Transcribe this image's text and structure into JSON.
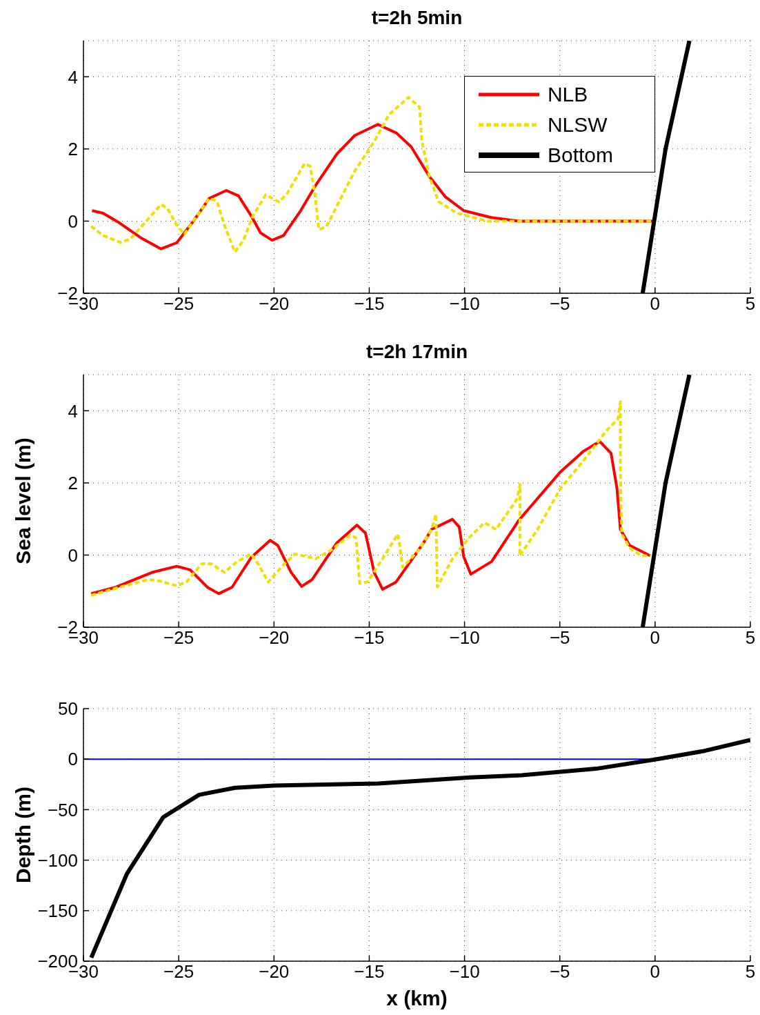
{
  "chart_data": [
    {
      "type": "line",
      "title": "t=2h 5min",
      "xlim": [
        -30,
        5
      ],
      "xticks": [
        -30,
        -25,
        -20,
        -15,
        -10,
        -5,
        0,
        5
      ],
      "ylim": [
        -2,
        5
      ],
      "yticks": [
        -2,
        0,
        2,
        4
      ],
      "grid": true,
      "legend": "top right",
      "series": [
        {
          "name": "NLB",
          "color": "#ff0000",
          "line_style": "solid",
          "x": [
            -29.55,
            -28.97,
            -28.2,
            -27.0,
            -25.93,
            -25.1,
            -24.3,
            -23.4,
            -22.5,
            -21.86,
            -21.2,
            -20.7,
            -20.1,
            -19.5,
            -18.6,
            -17.84,
            -16.7,
            -15.77,
            -14.55,
            -13.57,
            -12.8,
            -11.85,
            -11.0,
            -10.04,
            -8.6,
            -7.14,
            -0.13
          ],
          "values": [
            0.29,
            0.22,
            -0.02,
            -0.46,
            -0.77,
            -0.6,
            -0.05,
            0.63,
            0.85,
            0.7,
            0.15,
            -0.33,
            -0.53,
            -0.4,
            0.29,
            0.97,
            1.86,
            2.37,
            2.68,
            2.44,
            2.06,
            1.24,
            0.67,
            0.29,
            0.1,
            0,
            0
          ]
        },
        {
          "name": "NLSW",
          "color": "#f0e000",
          "line_style": "dashed",
          "x": [
            -29.6,
            -28.97,
            -28.06,
            -27.55,
            -26.9,
            -25.93,
            -25.6,
            -25.1,
            -24.7,
            -24.05,
            -23.4,
            -23.0,
            -22.6,
            -22.05,
            -21.6,
            -21.1,
            -20.43,
            -19.74,
            -19.3,
            -18.4,
            -18.1,
            -17.84,
            -17.65,
            -17.25,
            -16.7,
            -15.77,
            -14.75,
            -13.97,
            -12.94,
            -12.36,
            -12.25,
            -11.85,
            -11.36,
            -10.4,
            -8.8,
            -0.13
          ],
          "values": [
            -0.14,
            -0.4,
            -0.59,
            -0.5,
            -0.12,
            0.46,
            0.36,
            -0.12,
            -0.36,
            0.15,
            0.63,
            0.56,
            -0.12,
            -0.86,
            -0.53,
            0.15,
            0.73,
            0.53,
            0.77,
            1.59,
            1.52,
            0.7,
            -0.23,
            -0.16,
            0.42,
            1.38,
            2.2,
            2.95,
            3.43,
            3.16,
            2.25,
            1.24,
            0.54,
            0.22,
            0,
            0
          ]
        },
        {
          "name": "Bottom",
          "color": "#000000",
          "line_style": "solid",
          "x": [
            -0.65,
            0.55,
            1.8
          ],
          "values": [
            -2,
            2,
            5
          ]
        }
      ]
    },
    {
      "type": "line",
      "title": "t=2h 17min",
      "ylabel": "Sea level (m)",
      "xlim": [
        -30,
        5
      ],
      "xticks": [
        -30,
        -25,
        -20,
        -15,
        -10,
        -5,
        0,
        5
      ],
      "ylim": [
        -2,
        5
      ],
      "yticks": [
        -2,
        0,
        2,
        4
      ],
      "grid": true,
      "series": [
        {
          "color": "#ff0000",
          "line_style": "solid",
          "x": [
            -29.6,
            -28.3,
            -26.4,
            -25.1,
            -24.4,
            -23.5,
            -22.9,
            -22.2,
            -21.2,
            -20.2,
            -19.8,
            -19.1,
            -18.55,
            -18.0,
            -16.7,
            -15.65,
            -15.2,
            -14.74,
            -14.3,
            -13.6,
            -12.15,
            -11.73,
            -10.64,
            -10.28,
            -10.04,
            -9.67,
            -8.58,
            -7.14,
            -4.96,
            -3.75,
            -2.91,
            -2.31,
            -2.0,
            -1.82,
            -1.34,
            -0.25
          ],
          "values": [
            -1.07,
            -0.89,
            -0.48,
            -0.31,
            -0.41,
            -0.89,
            -1.07,
            -0.89,
            -0.07,
            0.41,
            0.27,
            -0.48,
            -0.87,
            -0.68,
            0.34,
            0.83,
            0.61,
            -0.48,
            -0.95,
            -0.75,
            0.34,
            0.71,
            0.99,
            0.78,
            -0.05,
            -0.53,
            -0.18,
            0.97,
            2.31,
            2.88,
            3.15,
            2.82,
            1.85,
            0.71,
            0.27,
            -0.02
          ]
        },
        {
          "color": "#f0e000",
          "line_style": "dashed",
          "x": [
            -29.6,
            -28.3,
            -26.6,
            -26.0,
            -25.1,
            -24.6,
            -23.8,
            -23.3,
            -22.6,
            -21.98,
            -21.2,
            -20.8,
            -20.3,
            -19.5,
            -18.9,
            -17.8,
            -17.0,
            -16.0,
            -15.7,
            -15.6,
            -15.5,
            -15.1,
            -14.35,
            -13.5,
            -13.4,
            -13.25,
            -12.4,
            -11.73,
            -11.5,
            -11.43,
            -10.64,
            -9.8,
            -8.95,
            -8.35,
            -7.26,
            -7.08,
            -7.1,
            -6.17,
            -4.96,
            -3.75,
            -2.55,
            -1.95,
            -1.82,
            -1.82,
            -1.76,
            -1.34,
            -0.74,
            -0.25
          ],
          "values": [
            -1.12,
            -0.92,
            -0.68,
            -0.72,
            -0.85,
            -0.75,
            -0.24,
            -0.24,
            -0.48,
            -0.2,
            0.03,
            -0.27,
            -0.75,
            -0.27,
            0.03,
            -0.1,
            0.14,
            0.55,
            0.48,
            -0.14,
            -0.78,
            -0.75,
            -0.14,
            0.58,
            0.27,
            -0.34,
            0.14,
            0.71,
            1.13,
            -0.88,
            -0.11,
            0.46,
            0.9,
            0.71,
            1.54,
            1.96,
            -0.02,
            0.71,
            1.85,
            2.62,
            3.45,
            3.77,
            4.25,
            2.37,
            0.59,
            0.2,
            -0.02,
            -0.02
          ]
        },
        {
          "color": "#000000",
          "line_style": "solid",
          "x": [
            -0.65,
            0.55,
            1.8
          ],
          "values": [
            -2,
            2,
            5
          ]
        }
      ]
    },
    {
      "type": "line",
      "xlabel": "x (km)",
      "ylabel": "Depth (m)",
      "xlim": [
        -30,
        5
      ],
      "xticks": [
        -30,
        -25,
        -20,
        -15,
        -10,
        -5,
        0,
        5
      ],
      "ylim": [
        -200,
        50
      ],
      "yticks": [
        -200,
        -150,
        -100,
        -50,
        0,
        50
      ],
      "grid": true,
      "series": [
        {
          "color": "#0000ff",
          "line_style": "solid",
          "x": [
            -30,
            0
          ],
          "values": [
            0,
            0
          ]
        },
        {
          "color": "#000000",
          "line_style": "solid",
          "x": [
            -29.59,
            -27.72,
            -25.82,
            -23.93,
            -22.05,
            -20.0,
            -14.52,
            -9.73,
            -6.99,
            -3.1,
            0.1,
            2.6,
            5
          ],
          "values": [
            -196.5,
            -113.5,
            -57.6,
            -35.3,
            -28.4,
            -26.2,
            -24.1,
            -18.1,
            -15.9,
            -9.5,
            0,
            8.2,
            18.9
          ]
        }
      ]
    }
  ]
}
